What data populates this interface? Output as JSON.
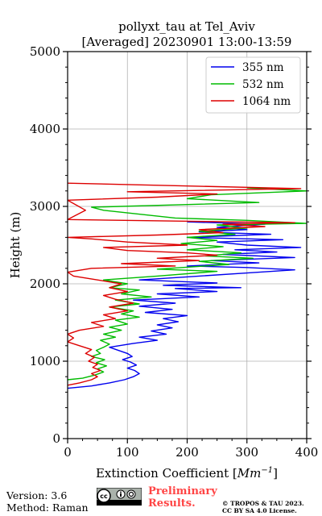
{
  "chart_data": {
    "type": "line",
    "title": "pollyxt_tau at Tel_Aviv",
    "subtitle": "[Averaged] 20230901 13:00-13:59",
    "xlabel": "Extinction Coefficient [",
    "xlabel_unit": "Mm",
    "xlabel_exp": "−1",
    "xlabel_close": "]",
    "ylabel": "Height (m)",
    "xlim": [
      0,
      400
    ],
    "ylim": [
      0,
      5000
    ],
    "x_ticks": [
      0,
      100,
      200,
      300,
      400
    ],
    "y_ticks": [
      0,
      1000,
      2000,
      3000,
      4000,
      5000
    ],
    "grid": true,
    "legend_position": "top-right",
    "series": [
      {
        "name": "355 nm",
        "color": "#0000ee",
        "points": [
          [
            0,
            650
          ],
          [
            40,
            680
          ],
          [
            70,
            720
          ],
          [
            95,
            760
          ],
          [
            110,
            800
          ],
          [
            120,
            840
          ],
          [
            112,
            880
          ],
          [
            100,
            910
          ],
          [
            115,
            950
          ],
          [
            105,
            990
          ],
          [
            92,
            1020
          ],
          [
            108,
            1060
          ],
          [
            100,
            1100
          ],
          [
            85,
            1140
          ],
          [
            70,
            1180
          ],
          [
            110,
            1230
          ],
          [
            150,
            1270
          ],
          [
            120,
            1310
          ],
          [
            165,
            1350
          ],
          [
            140,
            1390
          ],
          [
            175,
            1430
          ],
          [
            150,
            1470
          ],
          [
            185,
            1510
          ],
          [
            160,
            1550
          ],
          [
            200,
            1590
          ],
          [
            130,
            1630
          ],
          [
            175,
            1670
          ],
          [
            120,
            1710
          ],
          [
            180,
            1750
          ],
          [
            110,
            1790
          ],
          [
            220,
            1830
          ],
          [
            150,
            1870
          ],
          [
            250,
            1900
          ],
          [
            180,
            1940
          ],
          [
            290,
            1950
          ],
          [
            160,
            1980
          ],
          [
            250,
            2010
          ],
          [
            120,
            2050
          ],
          [
            200,
            2090
          ],
          [
            300,
            2140
          ],
          [
            380,
            2180
          ],
          [
            300,
            2210
          ],
          [
            200,
            2230
          ],
          [
            320,
            2270
          ],
          [
            240,
            2300
          ],
          [
            380,
            2340
          ],
          [
            260,
            2380
          ],
          [
            350,
            2410
          ],
          [
            280,
            2440
          ],
          [
            390,
            2470
          ],
          [
            300,
            2500
          ],
          [
            250,
            2540
          ],
          [
            360,
            2570
          ],
          [
            200,
            2600
          ],
          [
            340,
            2640
          ],
          [
            220,
            2670
          ],
          [
            300,
            2700
          ],
          [
            250,
            2730
          ],
          [
            330,
            2770
          ],
          [
            200,
            2800
          ]
        ]
      },
      {
        "name": "532 nm",
        "color": "#00bb00",
        "points": [
          [
            0,
            760
          ],
          [
            25,
            780
          ],
          [
            45,
            820
          ],
          [
            60,
            860
          ],
          [
            50,
            900
          ],
          [
            65,
            940
          ],
          [
            48,
            980
          ],
          [
            62,
            1020
          ],
          [
            40,
            1060
          ],
          [
            55,
            1100
          ],
          [
            48,
            1140
          ],
          [
            60,
            1180
          ],
          [
            70,
            1220
          ],
          [
            55,
            1270
          ],
          [
            80,
            1310
          ],
          [
            60,
            1350
          ],
          [
            90,
            1400
          ],
          [
            70,
            1440
          ],
          [
            100,
            1480
          ],
          [
            80,
            1530
          ],
          [
            120,
            1570
          ],
          [
            90,
            1610
          ],
          [
            110,
            1650
          ],
          [
            70,
            1700
          ],
          [
            120,
            1740
          ],
          [
            80,
            1790
          ],
          [
            140,
            1830
          ],
          [
            90,
            1870
          ],
          [
            120,
            1920
          ],
          [
            70,
            1950
          ],
          [
            100,
            2000
          ],
          [
            60,
            2050
          ],
          [
            150,
            2100
          ],
          [
            250,
            2160
          ],
          [
            150,
            2190
          ],
          [
            270,
            2250
          ],
          [
            220,
            2290
          ],
          [
            310,
            2330
          ],
          [
            230,
            2360
          ],
          [
            290,
            2400
          ],
          [
            200,
            2440
          ],
          [
            260,
            2480
          ],
          [
            190,
            2520
          ],
          [
            250,
            2560
          ],
          [
            200,
            2600
          ],
          [
            280,
            2640
          ],
          [
            220,
            2680
          ],
          [
            300,
            2720
          ],
          [
            250,
            2760
          ],
          [
            400,
            2780
          ],
          [
            300,
            2820
          ],
          [
            180,
            2850
          ],
          [
            60,
            2950
          ],
          [
            40,
            2990
          ],
          [
            320,
            3050
          ],
          [
            200,
            3100
          ],
          [
            240,
            3150
          ],
          [
            400,
            3200
          ],
          [
            300,
            3240
          ]
        ]
      },
      {
        "name": "1064 nm",
        "color": "#dd0000",
        "points": [
          [
            0,
            690
          ],
          [
            20,
            720
          ],
          [
            40,
            760
          ],
          [
            50,
            800
          ],
          [
            40,
            840
          ],
          [
            55,
            880
          ],
          [
            42,
            920
          ],
          [
            50,
            960
          ],
          [
            35,
            1000
          ],
          [
            45,
            1050
          ],
          [
            30,
            1100
          ],
          [
            40,
            1150
          ],
          [
            20,
            1200
          ],
          [
            0,
            1250
          ],
          [
            10,
            1300
          ],
          [
            0,
            1350
          ],
          [
            20,
            1400
          ],
          [
            60,
            1450
          ],
          [
            40,
            1500
          ],
          [
            80,
            1550
          ],
          [
            60,
            1600
          ],
          [
            100,
            1650
          ],
          [
            70,
            1700
          ],
          [
            110,
            1750
          ],
          [
            80,
            1800
          ],
          [
            60,
            1850
          ],
          [
            100,
            1900
          ],
          [
            70,
            1950
          ],
          [
            90,
            2000
          ],
          [
            50,
            2050
          ],
          [
            10,
            2100
          ],
          [
            0,
            2150
          ],
          [
            40,
            2200
          ],
          [
            180,
            2230
          ],
          [
            90,
            2260
          ],
          [
            220,
            2300
          ],
          [
            150,
            2330
          ],
          [
            250,
            2370
          ],
          [
            200,
            2400
          ],
          [
            100,
            2430
          ],
          [
            60,
            2470
          ],
          [
            200,
            2500
          ],
          [
            100,
            2540
          ],
          [
            40,
            2580
          ],
          [
            0,
            2600
          ],
          [
            150,
            2630
          ],
          [
            260,
            2660
          ],
          [
            220,
            2700
          ],
          [
            330,
            2740
          ],
          [
            260,
            2770
          ],
          [
            380,
            2790
          ],
          [
            0,
            2830
          ],
          [
            30,
            2950
          ],
          [
            0,
            3080
          ],
          [
            150,
            3120
          ],
          [
            250,
            3160
          ],
          [
            100,
            3190
          ],
          [
            390,
            3230
          ],
          [
            0,
            3300
          ]
        ]
      }
    ]
  },
  "footer": {
    "version": "Version: 3.6",
    "method": "Method: Raman",
    "preliminary_line1": "Preliminary",
    "preliminary_line2": "Results.",
    "copyright_line1": "© TROPOS & TAU 2023.",
    "copyright_line2": "CC BY SA 4.0 License."
  }
}
